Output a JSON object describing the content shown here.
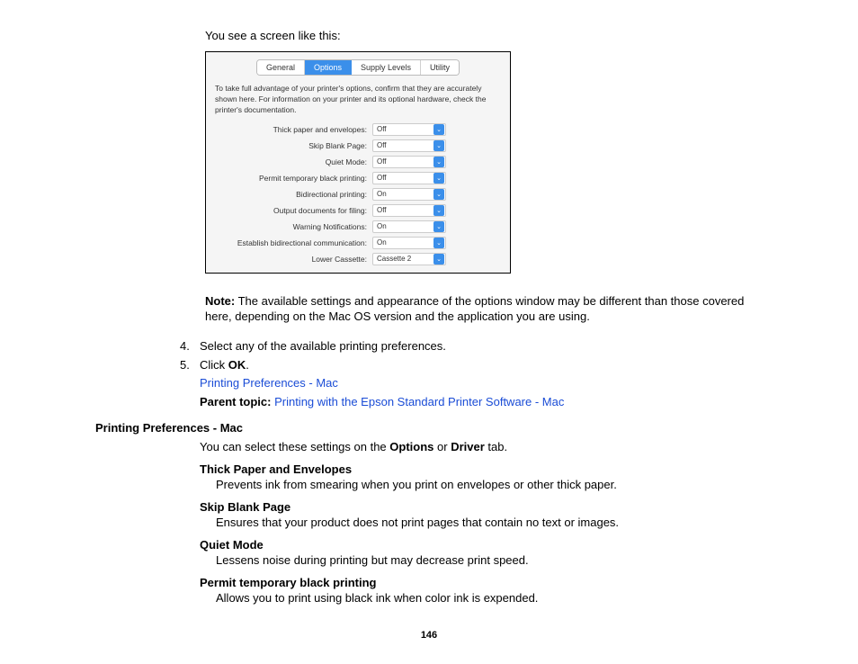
{
  "intro": "You see a screen like this:",
  "screenshot": {
    "tabs": [
      "General",
      "Options",
      "Supply Levels",
      "Utility"
    ],
    "active_tab_index": 1,
    "description": "To take full advantage of your printer's options, confirm that they are accurately shown here. For information on your printer and its optional hardware, check the printer's documentation.",
    "options": [
      {
        "label": "Thick paper and envelopes:",
        "value": "Off"
      },
      {
        "label": "Skip Blank Page:",
        "value": "Off"
      },
      {
        "label": "Quiet Mode:",
        "value": "Off"
      },
      {
        "label": "Permit temporary black printing:",
        "value": "Off"
      },
      {
        "label": "Bidirectional printing:",
        "value": "On"
      },
      {
        "label": "Output documents for filing:",
        "value": "Off"
      },
      {
        "label": "Warning Notifications:",
        "value": "On"
      },
      {
        "label": "Establish bidirectional communication:",
        "value": "On"
      },
      {
        "label": "Lower Cassette:",
        "value": "Cassette 2"
      }
    ]
  },
  "note": {
    "label": "Note:",
    "text": " The available settings and appearance of the options window may be different than those covered here, depending on the Mac OS version and the application you are using."
  },
  "steps": [
    {
      "num": "4.",
      "text_pre": "Select any of the available printing preferences."
    },
    {
      "num": "5.",
      "text_pre": "Click ",
      "bold": "OK",
      "text_post": "."
    }
  ],
  "pref_link": "Printing Preferences - Mac",
  "parent": {
    "label": "Parent topic:",
    "link": " Printing with the Epson Standard Printer Software - Mac"
  },
  "section": {
    "heading": "Printing Preferences - Mac",
    "intro_pre": "You can select these settings on the ",
    "intro_b1": "Options",
    "intro_mid": " or ",
    "intro_b2": "Driver",
    "intro_post": " tab."
  },
  "defs": [
    {
      "term": "Thick Paper and Envelopes",
      "desc": "Prevents ink from smearing when you print on envelopes or other thick paper."
    },
    {
      "term": "Skip Blank Page",
      "desc": "Ensures that your product does not print pages that contain no text or images."
    },
    {
      "term": "Quiet Mode",
      "desc": "Lessens noise during printing but may decrease print speed."
    },
    {
      "term": "Permit temporary black printing",
      "desc": "Allows you to print using black ink when color ink is expended."
    }
  ],
  "pageno": "146"
}
